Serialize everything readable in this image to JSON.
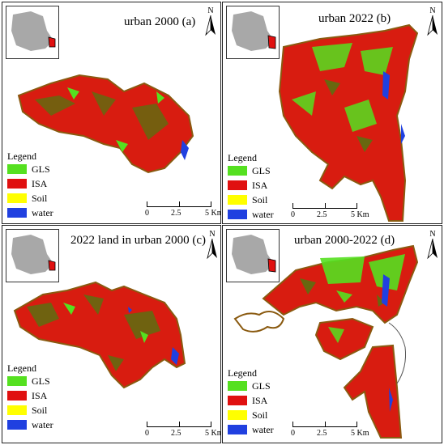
{
  "panels": [
    {
      "title": "urban 2000 (a)"
    },
    {
      "title": "urban 2022 (b)"
    },
    {
      "title": "2022 land in urban 2000  (c)"
    },
    {
      "title": "urban 2000-2022  (d)"
    }
  ],
  "north_label": "N",
  "legend": {
    "title": "Legend",
    "items": [
      {
        "label": "GLS",
        "color": "#55e020"
      },
      {
        "label": "ISA",
        "color": "#e01010"
      },
      {
        "label": "Soil",
        "color": "#ffff00"
      },
      {
        "label": "water",
        "color": "#2040e0"
      }
    ]
  },
  "scale": {
    "ticks": [
      "0",
      "2.5",
      "5 Km"
    ]
  },
  "colors": {
    "outline": "#8a5a10",
    "inset_fill": "#a8a8a8",
    "inset_highlight": "#e01010"
  }
}
